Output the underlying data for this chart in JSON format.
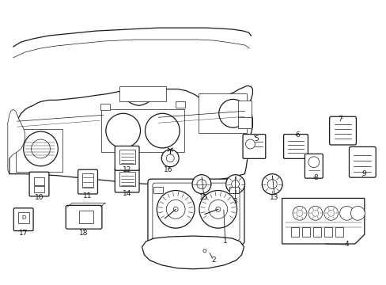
{
  "bg_color": "#ffffff",
  "line_color": "#1a1a1a",
  "fig_width": 4.89,
  "fig_height": 3.6,
  "dpi": 100,
  "dashboard": {
    "x": [
      0.03,
      0.03,
      0.045,
      0.055,
      0.06,
      0.065,
      0.068,
      0.072,
      0.085,
      0.095,
      0.11,
      0.12,
      0.13,
      0.145,
      0.155,
      0.165,
      0.175,
      0.185,
      0.195,
      0.21,
      0.225,
      0.24,
      0.255,
      0.27,
      0.285,
      0.3,
      0.315,
      0.33,
      0.345,
      0.36,
      0.375,
      0.39,
      0.405,
      0.415,
      0.42,
      0.425,
      0.43,
      0.435,
      0.44,
      0.445,
      0.45,
      0.455,
      0.46,
      0.465,
      0.47,
      0.48,
      0.49,
      0.5,
      0.51,
      0.52,
      0.53,
      0.535,
      0.54,
      0.545,
      0.55,
      0.555,
      0.558,
      0.56,
      0.558,
      0.555,
      0.55,
      0.545,
      0.54,
      0.535,
      0.53,
      0.525,
      0.52,
      0.515,
      0.51,
      0.505,
      0.495,
      0.48,
      0.46,
      0.44,
      0.42,
      0.4,
      0.38,
      0.36,
      0.34,
      0.32,
      0.295,
      0.27,
      0.24,
      0.21,
      0.18,
      0.15,
      0.12,
      0.09,
      0.065,
      0.048,
      0.038,
      0.03
    ],
    "y": [
      0.5,
      0.53,
      0.56,
      0.59,
      0.615,
      0.635,
      0.65,
      0.66,
      0.67,
      0.68,
      0.69,
      0.695,
      0.7,
      0.705,
      0.71,
      0.715,
      0.715,
      0.718,
      0.72,
      0.722,
      0.724,
      0.726,
      0.728,
      0.73,
      0.732,
      0.734,
      0.736,
      0.738,
      0.74,
      0.742,
      0.744,
      0.746,
      0.748,
      0.75,
      0.755,
      0.76,
      0.765,
      0.77,
      0.775,
      0.78,
      0.785,
      0.79,
      0.792,
      0.79,
      0.785,
      0.778,
      0.775,
      0.773,
      0.772,
      0.773,
      0.775,
      0.778,
      0.782,
      0.786,
      0.79,
      0.795,
      0.8,
      0.81,
      0.815,
      0.818,
      0.82,
      0.818,
      0.815,
      0.812,
      0.808,
      0.804,
      0.8,
      0.795,
      0.79,
      0.785,
      0.78,
      0.772,
      0.762,
      0.75,
      0.738,
      0.725,
      0.712,
      0.698,
      0.683,
      0.668,
      0.652,
      0.636,
      0.62,
      0.605,
      0.59,
      0.575,
      0.558,
      0.54,
      0.522,
      0.51,
      0.505,
      0.5
    ]
  }
}
